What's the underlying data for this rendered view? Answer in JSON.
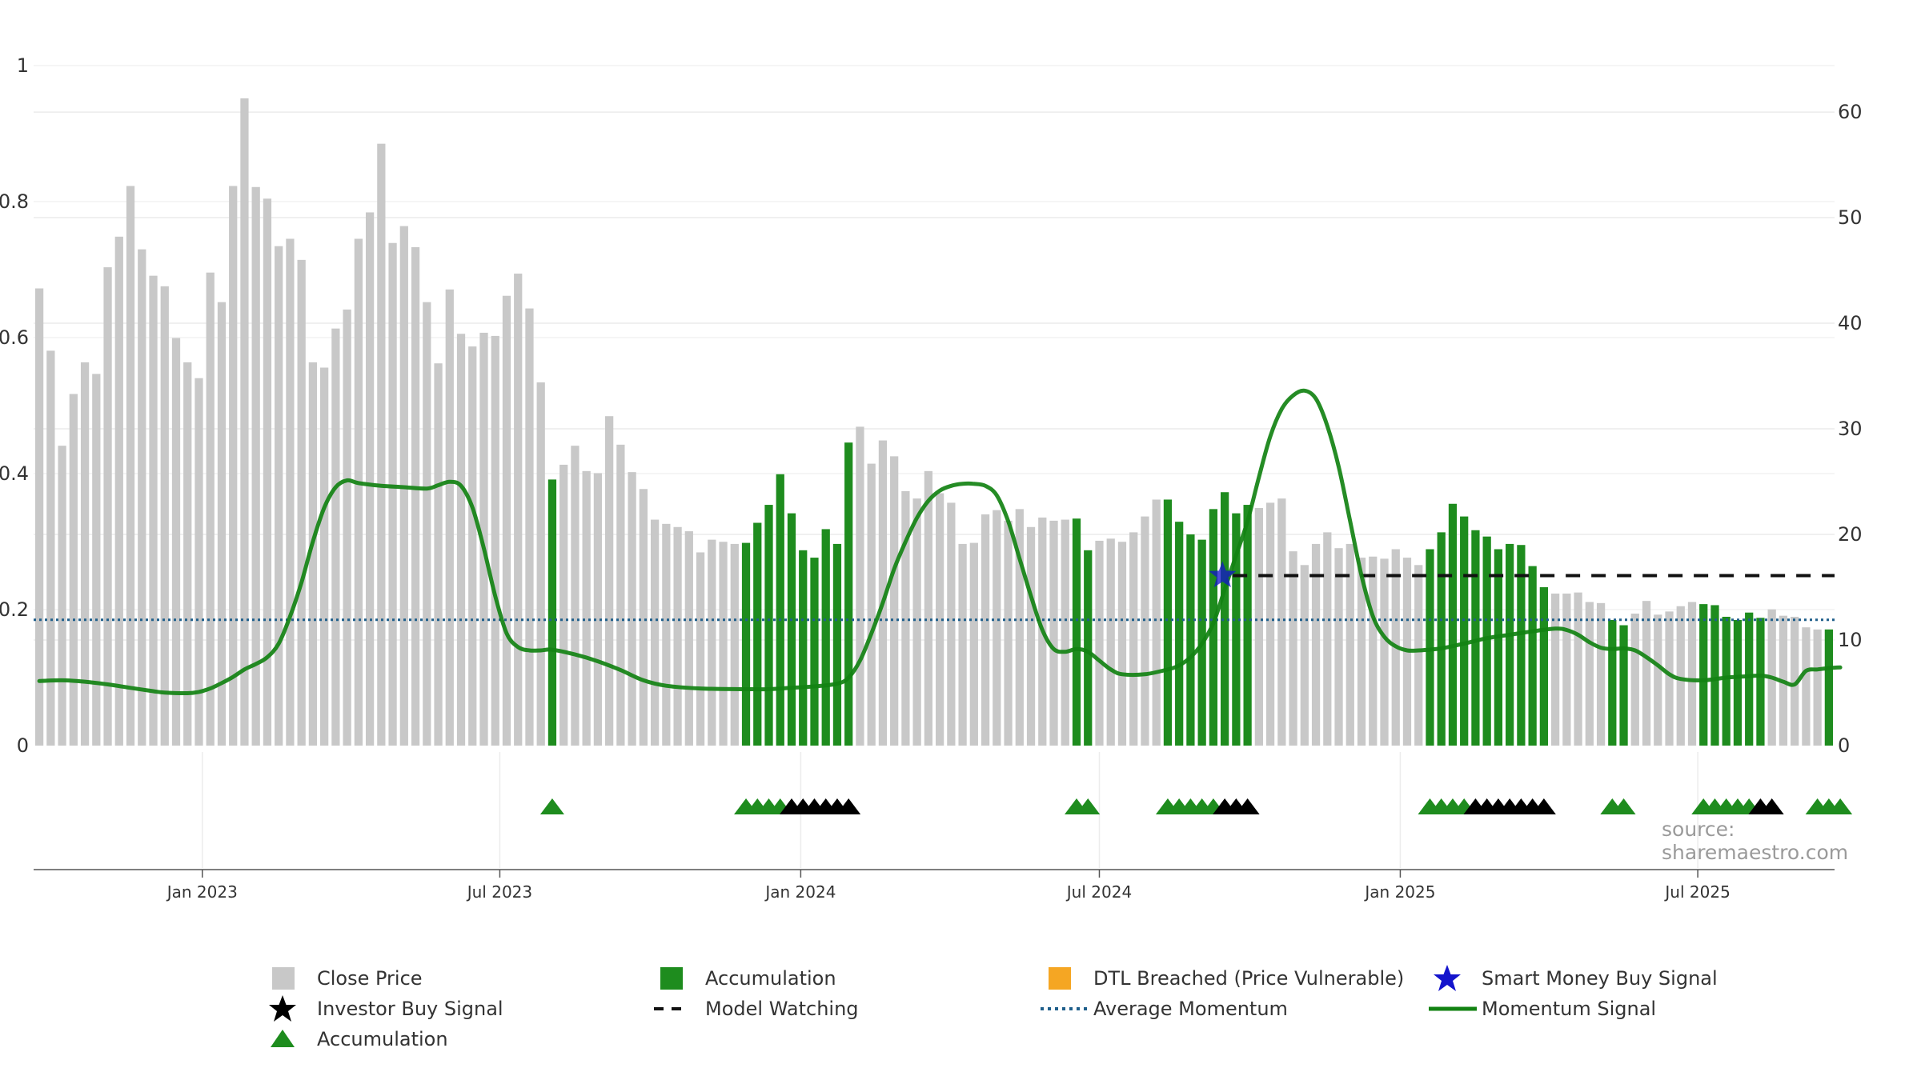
{
  "chart_data": {
    "type": "bar",
    "title": "",
    "xlabel": "",
    "ylabel": "",
    "x_tick_labels": [
      "Jan 2023",
      "Jul 2023",
      "Jan 2024",
      "Jul 2024",
      "Jan 2025",
      "Jul 2025"
    ],
    "left_axis": {
      "ylim": [
        0,
        1
      ],
      "ticks": [
        0,
        0.2,
        0.4,
        0.6,
        0.8,
        1
      ],
      "tick_labels": [
        "0",
        "0.2",
        "0.4",
        "0.6",
        "0.8",
        "1"
      ]
    },
    "right_axis": {
      "ylim": [
        0,
        64.4
      ],
      "ticks": [
        0,
        10,
        20,
        30,
        40,
        50,
        60
      ],
      "tick_labels": [
        "0",
        "10",
        "20",
        "30",
        "40",
        "50",
        "60"
      ]
    },
    "grid": true,
    "legend_placement": "bottom",
    "colors": {
      "close": "#c8c8c8",
      "accumulation_bar": "#1e8c1e",
      "momentum": "#128212",
      "average_momentum": "#1f5f8b",
      "model_watching": "#111111",
      "smart_money": "#1414cc",
      "investor": "#000000",
      "dtl": "#f5a623"
    },
    "series": [
      {
        "name": "Close Price",
        "type": "bar",
        "axis": "right",
        "values": [
          43.3,
          37.4,
          28.4,
          33.3,
          36.3,
          35.2,
          45.3,
          48.2,
          53.0,
          47.0,
          44.5,
          43.5,
          38.6,
          36.3,
          34.8,
          44.8,
          42.0,
          53.0,
          61.3,
          52.9,
          51.8,
          47.3,
          48.0,
          46.0,
          36.3,
          35.8,
          39.5,
          41.3,
          48.0,
          50.5,
          57.0,
          47.6,
          49.2,
          47.2,
          42.0,
          36.2,
          43.2,
          39.0,
          37.8,
          39.1,
          38.8,
          42.6,
          44.7,
          41.4,
          34.4,
          25.2,
          26.6,
          28.4,
          26.0,
          25.8,
          31.2,
          28.5,
          25.9,
          24.3,
          21.4,
          21.0,
          20.7,
          20.3,
          18.3,
          19.5,
          19.3,
          19.1,
          19.2,
          21.1,
          22.8,
          25.7,
          22.0,
          18.5,
          17.8,
          20.5,
          19.1,
          28.7,
          30.2,
          26.7,
          28.9,
          27.4,
          24.1,
          23.4,
          26.0,
          23.9,
          23.0,
          19.1,
          19.2,
          21.9,
          22.3,
          21.3,
          22.4,
          20.7,
          21.6,
          21.3,
          21.4,
          21.5,
          18.5,
          19.4,
          19.6,
          19.3,
          20.2,
          21.7,
          23.3,
          23.3,
          21.2,
          20.0,
          19.5,
          22.4,
          24.0,
          22.0,
          22.8,
          22.5,
          23.0,
          23.4,
          18.4,
          17.1,
          19.1,
          20.2,
          18.7,
          19.1,
          17.8,
          17.9,
          17.7,
          18.6,
          17.8,
          17.1,
          18.6,
          20.2,
          22.9,
          21.7,
          20.4,
          19.8,
          18.6,
          19.1,
          19.0,
          17.0,
          15.0,
          14.4,
          14.4,
          14.5,
          13.6,
          13.5,
          11.9,
          11.4,
          12.5,
          13.7,
          12.4,
          12.7,
          13.2,
          13.6,
          13.4,
          13.3,
          12.2,
          11.9,
          12.6,
          12.1,
          12.9,
          12.3,
          12.2,
          11.2,
          11.0,
          11.0
        ]
      },
      {
        "name": "Accumulation",
        "type": "bar",
        "axis": "right",
        "description_indices": "indices of Close Price bars drawn as accumulation (green)",
        "indices": [
          45,
          62,
          63,
          64,
          65,
          66,
          67,
          68,
          69,
          70,
          71,
          91,
          92,
          99,
          100,
          101,
          102,
          103,
          104,
          105,
          106,
          122,
          123,
          124,
          125,
          126,
          127,
          128,
          129,
          130,
          131,
          132,
          138,
          139,
          146,
          147,
          148,
          149,
          150,
          151,
          157,
          158
        ]
      },
      {
        "name": "Momentum Signal",
        "type": "line",
        "axis": "left",
        "points": [
          [
            0,
            0.095
          ],
          [
            2,
            0.096
          ],
          [
            4,
            0.094
          ],
          [
            6,
            0.09
          ],
          [
            8,
            0.085
          ],
          [
            10,
            0.08
          ],
          [
            11,
            0.078
          ],
          [
            13,
            0.077
          ],
          [
            14,
            0.079
          ],
          [
            15,
            0.084
          ],
          [
            16,
            0.092
          ],
          [
            17,
            0.101
          ],
          [
            18,
            0.112
          ],
          [
            19,
            0.12
          ],
          [
            20,
            0.13
          ],
          [
            21,
            0.15
          ],
          [
            22,
            0.19
          ],
          [
            23,
            0.24
          ],
          [
            24,
            0.3
          ],
          [
            25,
            0.35
          ],
          [
            26,
            0.38
          ],
          [
            27,
            0.39
          ],
          [
            28,
            0.386
          ],
          [
            30,
            0.382
          ],
          [
            32,
            0.38
          ],
          [
            34,
            0.378
          ],
          [
            35,
            0.383
          ],
          [
            36,
            0.388
          ],
          [
            37,
            0.382
          ],
          [
            38,
            0.35
          ],
          [
            39,
            0.29
          ],
          [
            40,
            0.22
          ],
          [
            41,
            0.165
          ],
          [
            42,
            0.145
          ],
          [
            43,
            0.14
          ],
          [
            44,
            0.14
          ],
          [
            45,
            0.141
          ],
          [
            47,
            0.134
          ],
          [
            49,
            0.124
          ],
          [
            51,
            0.111
          ],
          [
            53,
            0.096
          ],
          [
            55,
            0.088
          ],
          [
            58,
            0.084
          ],
          [
            62,
            0.083
          ],
          [
            64,
            0.083
          ],
          [
            66,
            0.085
          ],
          [
            68,
            0.087
          ],
          [
            70,
            0.091
          ],
          [
            71,
            0.1
          ],
          [
            72,
            0.125
          ],
          [
            73,
            0.165
          ],
          [
            74,
            0.21
          ],
          [
            75,
            0.26
          ],
          [
            76,
            0.3
          ],
          [
            77,
            0.335
          ],
          [
            78,
            0.36
          ],
          [
            79,
            0.375
          ],
          [
            80,
            0.382
          ],
          [
            81,
            0.385
          ],
          [
            82,
            0.385
          ],
          [
            83,
            0.382
          ],
          [
            84,
            0.368
          ],
          [
            85,
            0.33
          ],
          [
            86,
            0.275
          ],
          [
            87,
            0.22
          ],
          [
            88,
            0.17
          ],
          [
            89,
            0.142
          ],
          [
            90,
            0.138
          ],
          [
            91,
            0.142
          ],
          [
            92,
            0.138
          ],
          [
            93,
            0.125
          ],
          [
            94,
            0.112
          ],
          [
            95,
            0.105
          ],
          [
            97,
            0.105
          ],
          [
            99,
            0.112
          ],
          [
            100,
            0.118
          ],
          [
            101,
            0.13
          ],
          [
            102,
            0.15
          ],
          [
            103,
            0.18
          ],
          [
            104,
            0.23
          ],
          [
            105,
            0.28
          ],
          [
            106,
            0.33
          ],
          [
            107,
            0.395
          ],
          [
            108,
            0.455
          ],
          [
            109,
            0.495
          ],
          [
            110,
            0.515
          ],
          [
            111,
            0.522
          ],
          [
            112,
            0.51
          ],
          [
            113,
            0.47
          ],
          [
            114,
            0.41
          ],
          [
            115,
            0.33
          ],
          [
            116,
            0.25
          ],
          [
            117,
            0.19
          ],
          [
            118,
            0.16
          ],
          [
            119,
            0.146
          ],
          [
            120,
            0.14
          ],
          [
            121,
            0.14
          ],
          [
            123,
            0.143
          ],
          [
            125,
            0.15
          ],
          [
            127,
            0.158
          ],
          [
            129,
            0.163
          ],
          [
            131,
            0.168
          ],
          [
            133,
            0.172
          ],
          [
            134,
            0.17
          ],
          [
            135,
            0.163
          ],
          [
            136,
            0.152
          ],
          [
            137,
            0.144
          ],
          [
            138,
            0.142
          ],
          [
            139,
            0.143
          ],
          [
            140,
            0.14
          ],
          [
            141,
            0.13
          ],
          [
            142,
            0.118
          ],
          [
            143,
            0.105
          ],
          [
            144,
            0.098
          ],
          [
            146,
            0.096
          ],
          [
            148,
            0.1
          ],
          [
            150,
            0.102
          ],
          [
            151,
            0.103
          ],
          [
            152,
            0.1
          ],
          [
            153,
            0.094
          ],
          [
            154,
            0.09
          ],
          [
            155,
            0.11
          ],
          [
            156,
            0.112
          ],
          [
            157,
            0.114
          ],
          [
            158,
            0.115
          ]
        ]
      },
      {
        "name": "Average Momentum",
        "type": "line",
        "axis": "left",
        "value": 0.185
      },
      {
        "name": "Model Watching",
        "type": "line",
        "axis": "left",
        "x_start_index": 104,
        "x_end_index": 158,
        "value": 0.25
      },
      {
        "name": "Smart Money Buy Signal",
        "type": "scatter",
        "axis": "left",
        "points": [
          [
            103.8,
            0.25
          ]
        ]
      },
      {
        "name": "Accumulation",
        "type": "scatter",
        "marker": "triangle",
        "axis": "bottom_row",
        "indices": [
          45,
          62,
          63,
          64,
          65,
          91,
          92,
          99,
          100,
          101,
          102,
          103,
          122,
          123,
          124,
          125,
          138,
          139,
          146,
          147,
          148,
          149,
          150,
          156,
          157,
          158
        ]
      },
      {
        "name": "Investor Buy Signal",
        "type": "scatter",
        "marker": "triangle",
        "axis": "bottom_row",
        "indices": [
          66,
          67,
          68,
          69,
          70,
          71,
          104,
          105,
          106,
          126,
          127,
          128,
          129,
          130,
          131,
          132,
          151,
          152
        ]
      }
    ],
    "legend": [
      "Close Price",
      "Accumulation",
      "DTL Breached (Price Vulnerable)",
      "Smart Money Buy Signal",
      "Investor Buy Signal",
      "Model Watching",
      "Average Momentum",
      "Momentum Signal",
      "Accumulation"
    ]
  },
  "source_text": "source: sharemaestro.com"
}
